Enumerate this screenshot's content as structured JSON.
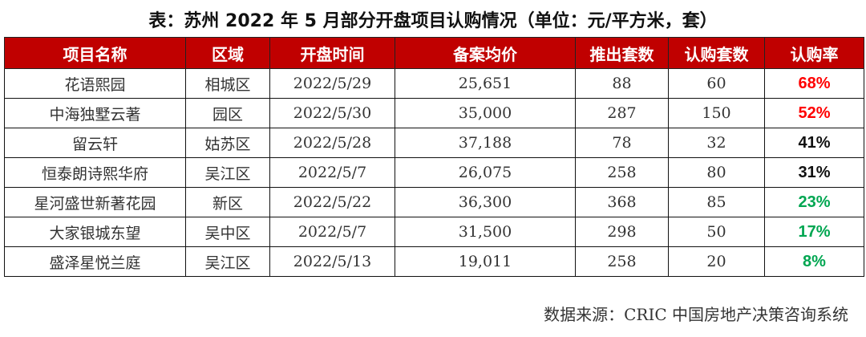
{
  "title": "表：苏州 2022 年 5 月部分开盘项目认购情况（单位：元/平方米，套）",
  "table": {
    "headers": [
      "项目名称",
      "区域",
      "开盘时间",
      "备案均价",
      "推出套数",
      "认购套数",
      "认购率"
    ],
    "rows": [
      [
        "花语熙园",
        "相城区",
        "2022/5/29",
        "25,651",
        "88",
        "60",
        "68%"
      ],
      [
        "中海独墅云著",
        "园区",
        "2022/5/30",
        "35,000",
        "287",
        "150",
        "52%"
      ],
      [
        "留云轩",
        "姑苏区",
        "2022/5/28",
        "37,188",
        "78",
        "32",
        "41%"
      ],
      [
        "恒泰朗诗熙华府",
        "吴江区",
        "2022/5/7",
        "26,075",
        "258",
        "80",
        "31%"
      ],
      [
        "星河盛世新著花园",
        "新区",
        "2022/5/22",
        "36,300",
        "368",
        "85",
        "23%"
      ],
      [
        "大家银城东望",
        "吴中区",
        "2022/5/7",
        "31,500",
        "298",
        "50",
        "17%"
      ],
      [
        "盛泽星悦兰庭",
        "吴江区",
        "2022/5/13",
        "19,011",
        "258",
        "20",
        "8%"
      ]
    ],
    "rate_colors": [
      "#ff0000",
      "#ff0000",
      "#111111",
      "#111111",
      "#00a651",
      "#00a651",
      "#00a651"
    ],
    "header_color": "#c00000"
  },
  "source": "数据来源：CRIC 中国房地产决策咨询系统"
}
